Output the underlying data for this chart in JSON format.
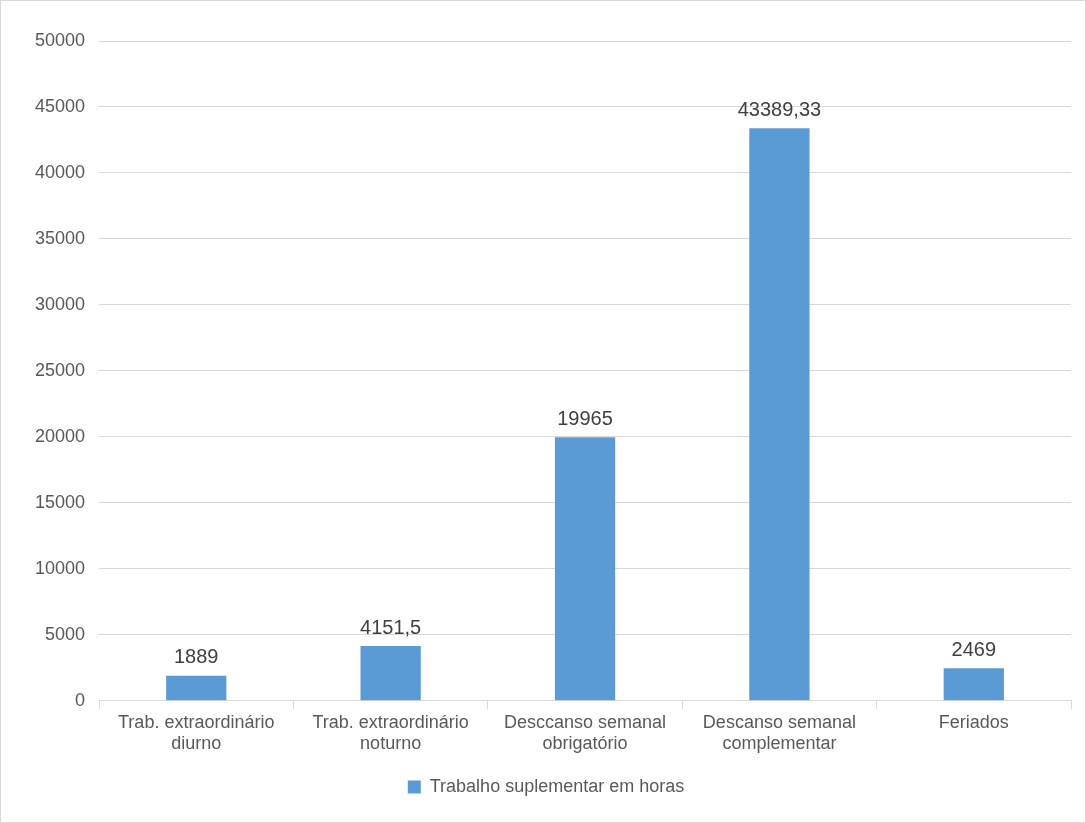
{
  "chart_data": {
    "type": "bar",
    "categories": [
      "Trab. extraordinário diurno",
      "Trab. extraordinário noturno",
      "Desccanso semanal obrigatório",
      "Descanso semanal complementar",
      "Feriados"
    ],
    "series": [
      {
        "name": "Trabalho suplementar em horas",
        "color": "#5b9bd5",
        "values": [
          1889,
          4151.5,
          19965,
          43389.33,
          2469
        ],
        "value_labels": [
          "1889",
          "4151,5",
          "19965",
          "43389,33",
          "2469"
        ]
      }
    ],
    "ylim": [
      0,
      50000
    ],
    "yticks": [
      0,
      5000,
      10000,
      15000,
      20000,
      25000,
      30000,
      35000,
      40000,
      45000,
      50000
    ],
    "grid": "y",
    "legend": "bottom"
  }
}
